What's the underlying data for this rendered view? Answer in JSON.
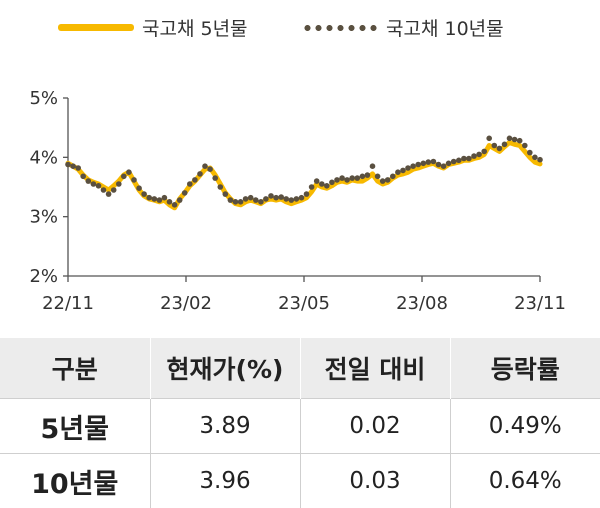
{
  "legend": {
    "series1": "국고채 5년물",
    "series2": "국고채 10년물"
  },
  "colors": {
    "series1": "#f7b900",
    "series2": "#5a5040",
    "axis": "#555555",
    "header_bg": "#ececec"
  },
  "chart_data": {
    "type": "line",
    "yticks": [
      "2%",
      "3%",
      "4%",
      "5%"
    ],
    "ylim": [
      2,
      5
    ],
    "xticks": [
      "22/11",
      "23/02",
      "23/05",
      "23/08",
      "23/11"
    ],
    "grid": false,
    "legend_position": "top",
    "series": [
      {
        "name": "국고채 5년물",
        "style": "solid-line",
        "values": [
          3.9,
          3.85,
          3.8,
          3.7,
          3.62,
          3.58,
          3.55,
          3.5,
          3.45,
          3.52,
          3.6,
          3.7,
          3.75,
          3.6,
          3.45,
          3.35,
          3.3,
          3.28,
          3.25,
          3.28,
          3.2,
          3.15,
          3.3,
          3.4,
          3.52,
          3.6,
          3.7,
          3.8,
          3.82,
          3.7,
          3.55,
          3.4,
          3.3,
          3.22,
          3.2,
          3.25,
          3.28,
          3.25,
          3.22,
          3.28,
          3.3,
          3.28,
          3.3,
          3.25,
          3.22,
          3.25,
          3.28,
          3.32,
          3.42,
          3.55,
          3.5,
          3.48,
          3.52,
          3.58,
          3.6,
          3.58,
          3.62,
          3.6,
          3.6,
          3.65,
          3.72,
          3.6,
          3.55,
          3.58,
          3.65,
          3.7,
          3.72,
          3.75,
          3.8,
          3.82,
          3.85,
          3.88,
          3.9,
          3.85,
          3.82,
          3.88,
          3.9,
          3.92,
          3.95,
          3.95,
          3.98,
          4.0,
          4.05,
          4.2,
          4.15,
          4.1,
          4.18,
          4.25,
          4.22,
          4.2,
          4.1,
          4.0,
          3.92,
          3.89
        ]
      },
      {
        "name": "국고채 10년물",
        "style": "dotted",
        "values": [
          3.88,
          3.85,
          3.82,
          3.68,
          3.6,
          3.55,
          3.52,
          3.45,
          3.38,
          3.45,
          3.55,
          3.68,
          3.75,
          3.62,
          3.48,
          3.38,
          3.32,
          3.3,
          3.28,
          3.32,
          3.25,
          3.2,
          3.28,
          3.4,
          3.55,
          3.62,
          3.72,
          3.85,
          3.8,
          3.65,
          3.5,
          3.38,
          3.28,
          3.25,
          3.25,
          3.3,
          3.32,
          3.28,
          3.25,
          3.3,
          3.35,
          3.32,
          3.33,
          3.3,
          3.28,
          3.3,
          3.32,
          3.38,
          3.5,
          3.6,
          3.55,
          3.52,
          3.58,
          3.62,
          3.65,
          3.62,
          3.65,
          3.65,
          3.68,
          3.7,
          3.85,
          3.68,
          3.6,
          3.62,
          3.68,
          3.75,
          3.78,
          3.82,
          3.85,
          3.88,
          3.9,
          3.92,
          3.93,
          3.88,
          3.85,
          3.9,
          3.93,
          3.95,
          3.98,
          3.98,
          4.02,
          4.05,
          4.1,
          4.32,
          4.2,
          4.15,
          4.22,
          4.32,
          4.3,
          4.28,
          4.2,
          4.08,
          4.0,
          3.96
        ]
      }
    ]
  },
  "table": {
    "headers": [
      "구분",
      "현재가(%)",
      "전일 대비",
      "등락률"
    ],
    "rows": [
      [
        "5년물",
        "3.89",
        "0.02",
        "0.49%"
      ],
      [
        "10년물",
        "3.96",
        "0.03",
        "0.64%"
      ]
    ]
  }
}
